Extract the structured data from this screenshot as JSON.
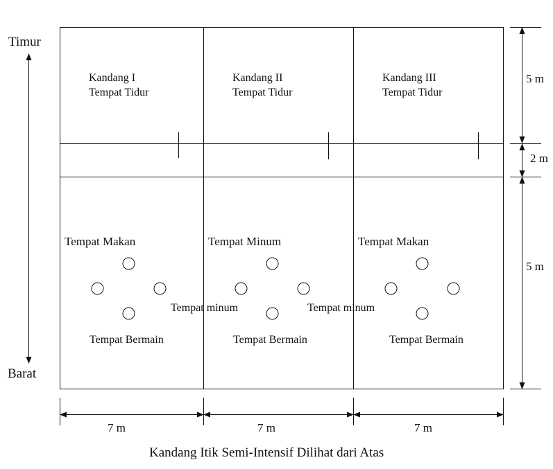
{
  "compass": {
    "top": "Timur",
    "bottom": "Barat"
  },
  "pens": [
    {
      "name": "Kandang I",
      "sleep": "Tempat Tidur",
      "zone_top": "Tempat Makan",
      "play": "Tempat Bermain"
    },
    {
      "name": "Kandang II",
      "sleep": "Tempat Tidur",
      "zone_top": "Tempat Minum",
      "play": "Tempat Bermain"
    },
    {
      "name": "Kandang III",
      "sleep": "Tempat Tidur",
      "zone_top": "Tempat Makan",
      "play": "Tempat Bermain"
    }
  ],
  "drinking_labels": [
    "Tempat minum",
    "Tempat minum"
  ],
  "dimensions": {
    "sleep_depth": "5 m",
    "aisle": "2 m",
    "yard_depth": "5 m",
    "pen_widths": [
      "7 m",
      "7 m",
      "7 m"
    ]
  },
  "caption": "Kandang Itik Semi-Intensif Dilihat dari Atas",
  "line_color": "#111111"
}
